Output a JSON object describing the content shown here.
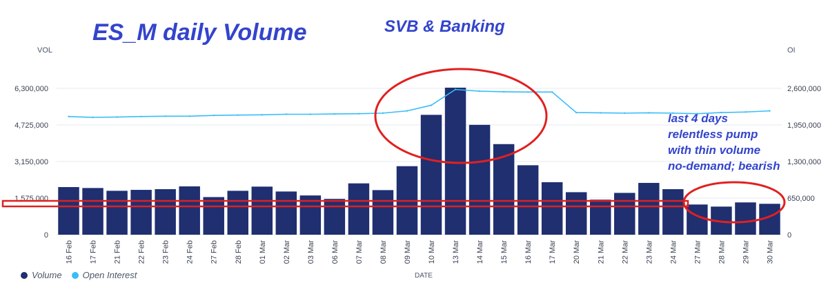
{
  "annotations": {
    "title": "ES_M daily Volume",
    "svb": "SVB & Banking",
    "note": [
      "last 4 days",
      "relentless pump",
      "with thin volume",
      "no-demand; bearish"
    ]
  },
  "legend": {
    "volume": "Volume",
    "open_interest": "Open Interest"
  },
  "colors": {
    "volume": "#1f2f70",
    "open_interest": "#38bdf8",
    "annotation": "#3344cc",
    "highlight": "#e0201f"
  },
  "chart_data": {
    "type": "bar",
    "xlabel": "DATE",
    "ylabel": "VOL",
    "y2label": "OI",
    "ylim": [
      0,
      6300000
    ],
    "y2lim": [
      0,
      2600000
    ],
    "yticks": [
      "0",
      "1,575,000",
      "3,150,000",
      "4,725,000",
      "6,300,000"
    ],
    "y2ticks": [
      "0",
      "650,000",
      "1,300,000",
      "1,950,000",
      "2,600,000"
    ],
    "grid": true,
    "legend_position": "bottom-left",
    "categories": [
      "16 Feb",
      "17 Feb",
      "21 Feb",
      "22 Feb",
      "23 Feb",
      "24 Feb",
      "27 Feb",
      "28 Feb",
      "01 Mar",
      "02 Mar",
      "03 Mar",
      "06 Mar",
      "07 Mar",
      "08 Mar",
      "09 Mar",
      "10 Mar",
      "13 Mar",
      "14 Mar",
      "15 Mar",
      "16 Mar",
      "17 Mar",
      "20 Mar",
      "21 Mar",
      "22 Mar",
      "23 Mar",
      "24 Mar",
      "27 Mar",
      "28 Mar",
      "29 Mar",
      "30 Mar"
    ],
    "series": [
      {
        "name": "Volume",
        "axis": "left",
        "type": "bar",
        "values": [
          2050000,
          2010000,
          1890000,
          1930000,
          1960000,
          2080000,
          1620000,
          1890000,
          2070000,
          1860000,
          1690000,
          1540000,
          2210000,
          1920000,
          2950000,
          5160000,
          6330000,
          4730000,
          3900000,
          2990000,
          2260000,
          1830000,
          1510000,
          1800000,
          2230000,
          1960000,
          1300000,
          1210000,
          1390000,
          1330000
        ]
      },
      {
        "name": "Open Interest",
        "axis": "right",
        "type": "line",
        "values": [
          2100000,
          2085000,
          2090000,
          2100000,
          2105000,
          2105000,
          2120000,
          2125000,
          2130000,
          2140000,
          2140000,
          2145000,
          2150000,
          2160000,
          2200000,
          2300000,
          2580000,
          2550000,
          2540000,
          2535000,
          2535000,
          2170000,
          2165000,
          2160000,
          2165000,
          2160000,
          2150000,
          2170000,
          2180000,
          2200000
        ]
      }
    ]
  }
}
